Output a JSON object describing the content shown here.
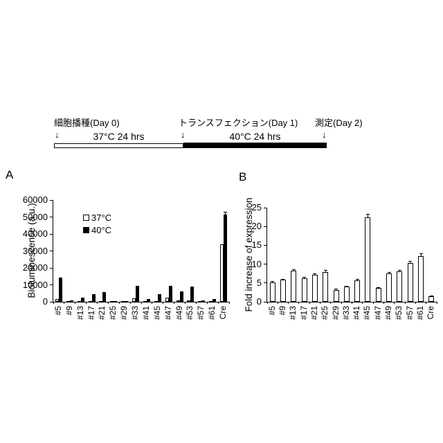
{
  "figure": {
    "panel_a_label": "A",
    "panel_b_label": "B"
  },
  "timeline": {
    "arrow_glyph": "↓",
    "events": [
      {
        "label": "細胞播種(Day 0)"
      },
      {
        "label": "トランスフェクション(Day 1)"
      },
      {
        "label": "測定(Day 2)"
      }
    ],
    "segments": [
      {
        "label": "37°C 24 hrs",
        "fill": "#ffffff"
      },
      {
        "label": "40°C 24 hrs",
        "fill": "#000000"
      }
    ]
  },
  "chart_data": [
    {
      "type": "bar",
      "panel": "A",
      "title": "",
      "xlabel": "",
      "ylabel": "Bioluminescence (a.u.)",
      "ylim": [
        0,
        60000
      ],
      "yticks": [
        0,
        10000,
        20000,
        30000,
        40000,
        50000,
        60000
      ],
      "grid": false,
      "legend_position": "upper-left-inside",
      "legend": [
        {
          "name": "37°C",
          "fill": "#ffffff"
        },
        {
          "name": "40°C",
          "fill": "#000000"
        }
      ],
      "categories": [
        "#5",
        "#9",
        "#13",
        "#17",
        "#21",
        "#25",
        "#29",
        "#33",
        "#41",
        "#45",
        "#47",
        "#49",
        "#53",
        "#57",
        "#61",
        "Cre"
      ],
      "series": [
        {
          "name": "37°C",
          "fill": "#ffffff",
          "values": [
            1800,
            250,
            300,
            600,
            600,
            200,
            200,
            2000,
            450,
            600,
            2400,
            800,
            900,
            250,
            250,
            34000
          ],
          "errors": [
            0,
            0,
            0,
            0,
            0,
            0,
            0,
            0,
            0,
            0,
            0,
            0,
            0,
            0,
            0,
            0
          ]
        },
        {
          "name": "40°C",
          "fill": "#000000",
          "values": [
            14200,
            900,
            2400,
            4500,
            5600,
            400,
            600,
            9300,
            1800,
            4600,
            9300,
            6200,
            8800,
            800,
            1500,
            51500
          ],
          "errors": [
            0,
            0,
            0,
            0,
            0,
            0,
            0,
            0,
            0,
            0,
            0,
            0,
            0,
            0,
            0,
            1500
          ]
        }
      ]
    },
    {
      "type": "bar",
      "panel": "B",
      "title": "",
      "xlabel": "",
      "ylabel": "Fold increase of expression",
      "ylim": [
        0,
        25
      ],
      "yticks": [
        0,
        5,
        10,
        15,
        20,
        25
      ],
      "grid": false,
      "legend_position": "none",
      "categories": [
        "#5",
        "#9",
        "#13",
        "#17",
        "#21",
        "#25",
        "#29",
        "#33",
        "#41",
        "#45",
        "#47",
        "#49",
        "#53",
        "#57",
        "#61",
        "Cre"
      ],
      "series": [
        {
          "name": "Fold increase of expression",
          "fill": "#ffffff",
          "values": [
            5.2,
            5.8,
            8.2,
            6.3,
            7.2,
            7.9,
            3.2,
            4.0,
            5.7,
            22.5,
            3.6,
            7.6,
            8.1,
            10.3,
            12.1,
            1.4
          ],
          "errors": [
            0.2,
            0.2,
            0.3,
            0.2,
            0.3,
            0.5,
            0.2,
            0.2,
            0.2,
            0.8,
            0.2,
            0.3,
            0.3,
            0.5,
            0.7,
            0.1
          ]
        }
      ]
    }
  ]
}
